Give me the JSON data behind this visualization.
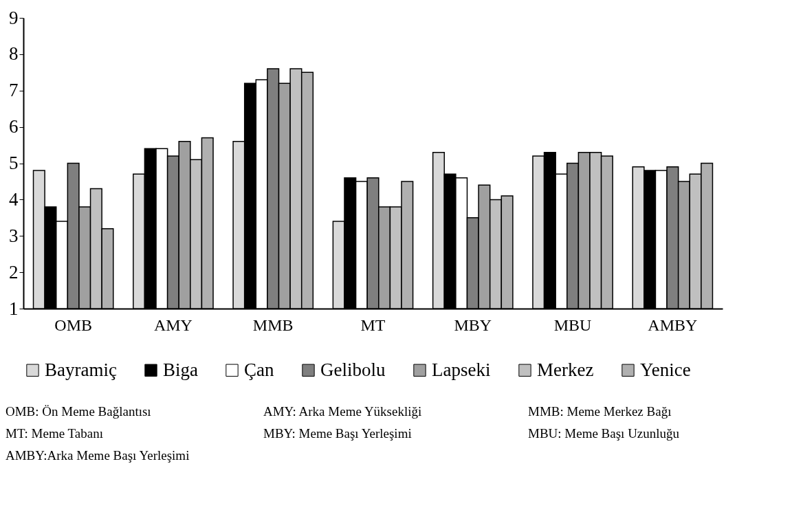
{
  "chart_data": {
    "type": "bar",
    "categories": [
      "OMB",
      "AMY",
      "MMB",
      "MT",
      "MBY",
      "MBU",
      "AMBY"
    ],
    "series": [
      {
        "name": "Bayramiç",
        "color": "#d9d9d9",
        "values": [
          4.8,
          4.7,
          5.6,
          3.4,
          5.3,
          5.2,
          4.9
        ]
      },
      {
        "name": "Biga",
        "color": "#000000",
        "values": [
          3.8,
          5.4,
          7.2,
          4.6,
          4.7,
          5.3,
          4.8
        ]
      },
      {
        "name": "Çan",
        "color": "#ffffff",
        "values": [
          3.4,
          5.4,
          7.3,
          4.5,
          4.6,
          4.7,
          4.8
        ]
      },
      {
        "name": "Gelibolu",
        "color": "#7f7f7f",
        "values": [
          5.0,
          5.2,
          7.6,
          4.6,
          3.5,
          5.0,
          4.9
        ]
      },
      {
        "name": "Lapseki",
        "color": "#a0a0a0",
        "values": [
          3.8,
          5.6,
          7.2,
          3.8,
          4.4,
          5.3,
          4.5
        ]
      },
      {
        "name": "Merkez",
        "color": "#c0c0c0",
        "values": [
          4.3,
          5.1,
          7.6,
          3.8,
          4.0,
          5.3,
          4.7
        ]
      },
      {
        "name": "Yenice",
        "color": "#b0b0b0",
        "values": [
          3.2,
          5.7,
          7.5,
          4.5,
          4.1,
          5.2,
          5.0
        ]
      }
    ],
    "ylim": [
      1,
      9
    ],
    "yticks": [
      1,
      2,
      3,
      4,
      5,
      6,
      7,
      8,
      9
    ],
    "grid": false,
    "legend": "bottom",
    "annotations": [
      "OMB: Ön Meme Bağlantısı",
      "AMY: Arka Meme Yüksekliği",
      "MMB: Meme Merkez Bağı",
      "MT: Meme Tabanı",
      "MBY: Meme Başı Yerleşimi",
      "MBU: Meme Başı Uzunluğu",
      "AMBY:Arka Meme Başı Yerleşimi"
    ]
  }
}
